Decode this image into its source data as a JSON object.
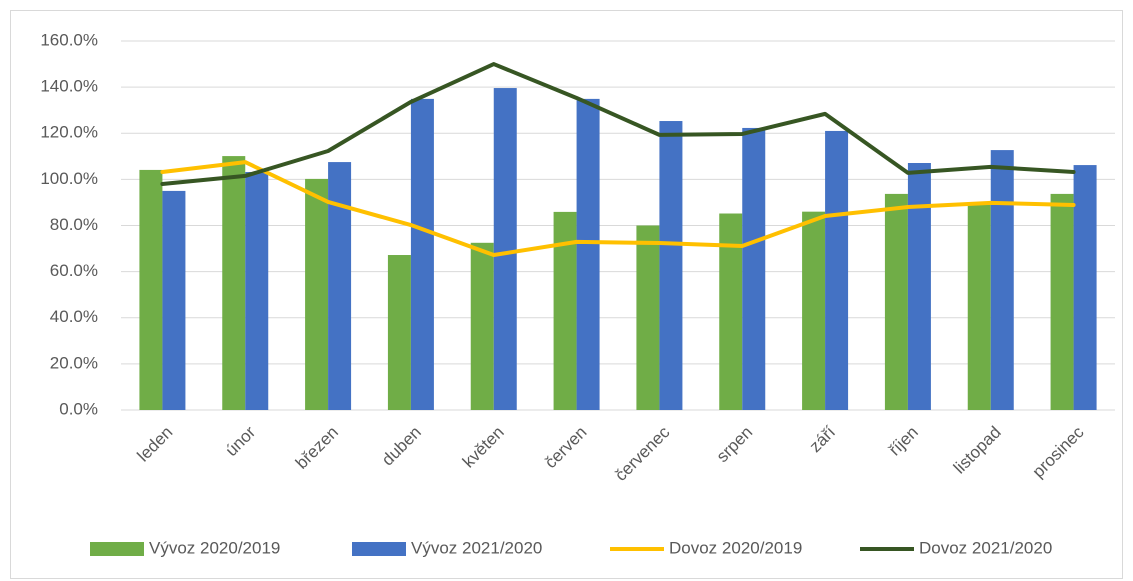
{
  "chart_data": {
    "type": "bar_line",
    "categories": [
      "leden",
      "únor",
      "březen",
      "duben",
      "květen",
      "červen",
      "červenec",
      "srpen",
      "září",
      "říjen",
      "listopad",
      "prosinec"
    ],
    "series": [
      {
        "name": "Vývoz 2020/2019",
        "type": "bar",
        "color": "#70ad47",
        "values": [
          104.1,
          110.1,
          100.2,
          67.2,
          72.5,
          85.9,
          80.0,
          85.2,
          86.0,
          93.7,
          90.0,
          93.7
        ]
      },
      {
        "name": "Vývoz 2021/2020",
        "type": "bar",
        "color": "#4472c4",
        "values": [
          95.0,
          103.2,
          107.5,
          134.9,
          139.6,
          134.9,
          125.3,
          122.3,
          121.0,
          107.1,
          112.7,
          106.2
        ]
      },
      {
        "name": "Dovoz 2020/2019",
        "type": "line",
        "color": "#ffc000",
        "values": [
          103.2,
          107.5,
          90.2,
          80.2,
          67.2,
          72.9,
          72.4,
          71.1,
          84.1,
          88.0,
          89.8,
          88.9
        ]
      },
      {
        "name": "Dovoz 2021/2020",
        "type": "line",
        "color": "#375623",
        "values": [
          98.0,
          101.5,
          112.3,
          133.6,
          150.0,
          135.3,
          119.3,
          119.7,
          128.4,
          102.8,
          105.4,
          103.2
        ]
      }
    ],
    "ylim": [
      0,
      160
    ],
    "yticks": [
      {
        "value": 0,
        "label": "0.0%"
      },
      {
        "value": 20,
        "label": "20.0%"
      },
      {
        "value": 40,
        "label": "40.0%"
      },
      {
        "value": 60,
        "label": "60.0%"
      },
      {
        "value": 80,
        "label": "80.0%"
      },
      {
        "value": 100,
        "label": "100.0%"
      },
      {
        "value": 120,
        "label": "120.0%"
      },
      {
        "value": 140,
        "label": "140.0%"
      },
      {
        "value": 160,
        "label": "160.0%"
      }
    ],
    "grid": true,
    "legend": "bottom"
  }
}
